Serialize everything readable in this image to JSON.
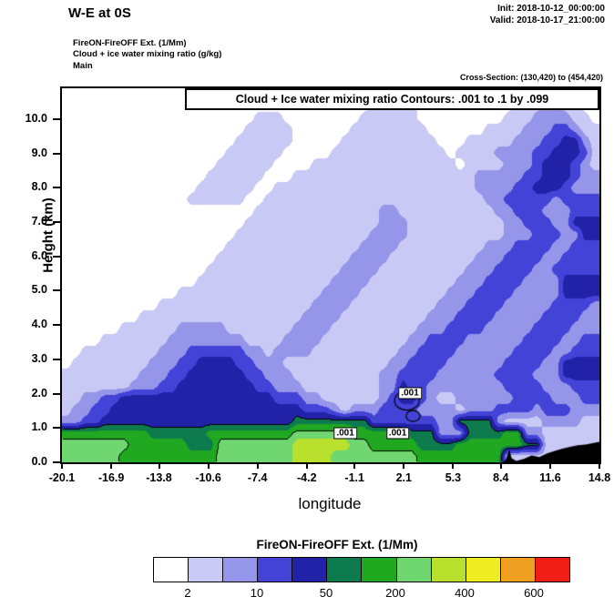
{
  "header": {
    "title": "W-E at 0S",
    "init": "Init: 2018-10-12_00:00:00",
    "valid": "Valid: 2018-10-17_21:00:00",
    "meta_line1": "FireON-FireOFF Ext.  (1/Mm)",
    "meta_line2": "Cloud + ice water mixing ratio  (g/kg)",
    "meta_line3": "Main",
    "cross_section": "Cross-Section: (130,420) to (454,420)"
  },
  "chart_data": {
    "type": "heatmap",
    "title_box": "Cloud + Ice water mixing ratio Contours: .001 to .1 by .099",
    "xlabel": "longitude",
    "ylabel": "Height (km)",
    "xlim": [
      -20.1,
      14.8
    ],
    "ylim": [
      0,
      10.9
    ],
    "x_ticks": [
      "-20.1",
      "-16.9",
      "-13.8",
      "-10.6",
      "-7.4",
      "-4.2",
      "-1.1",
      "2.1",
      "5.3",
      "8.4",
      "11.6",
      "14.8"
    ],
    "y_ticks": [
      "0.0",
      "1.0",
      "2.0",
      "3.0",
      "4.0",
      "5.0",
      "6.0",
      "7.0",
      "8.0",
      "9.0",
      "10.0"
    ],
    "palette": [
      "#ffffff",
      "#c9c9f5",
      "#9595e9",
      "#4343d8",
      "#2222a8",
      "#0e7b4f",
      "#21a821",
      "#70d670",
      "#b8e02c",
      "#f0ee22",
      "#f0a122",
      "#f01e14"
    ],
    "grid": {
      "nx": 56,
      "ny": 32,
      "note": "filled contour level index field, row 0 = top of plot; segments [startCol,endCol,levelIndex]",
      "rows": [
        [
          [
            33,
            35,
            1
          ],
          [
            49,
            52,
            1
          ]
        ],
        [
          [
            32,
            36,
            1
          ],
          [
            47,
            53,
            1
          ],
          [
            50,
            51,
            2
          ]
        ],
        [
          [
            20,
            22,
            1
          ],
          [
            31,
            36,
            1
          ],
          [
            46,
            54,
            1
          ],
          [
            49,
            52,
            2
          ]
        ],
        [
          [
            19,
            23,
            1
          ],
          [
            30,
            37,
            1
          ],
          [
            44,
            55,
            1
          ],
          [
            48,
            53,
            2
          ],
          [
            51,
            52,
            3
          ]
        ],
        [
          [
            18,
            23,
            1
          ],
          [
            29,
            38,
            1
          ],
          [
            42,
            55,
            1
          ],
          [
            47,
            54,
            2
          ],
          [
            50,
            53,
            3
          ],
          [
            52,
            53,
            4
          ]
        ],
        [
          [
            17,
            22,
            1
          ],
          [
            28,
            39,
            1
          ],
          [
            41,
            55,
            1
          ],
          [
            45,
            54,
            2
          ],
          [
            49,
            54,
            3
          ],
          [
            51,
            53,
            4
          ]
        ],
        [
          [
            16,
            21,
            1
          ],
          [
            26,
            40,
            1
          ],
          [
            42,
            55,
            1
          ],
          [
            46,
            54,
            2
          ],
          [
            49,
            53,
            3
          ],
          [
            50,
            52,
            4
          ]
        ],
        [
          [
            15,
            20,
            1
          ],
          [
            24,
            42,
            1
          ],
          [
            43,
            55,
            2
          ],
          [
            48,
            53,
            3
          ],
          [
            50,
            52,
            4
          ]
        ],
        [
          [
            14,
            19,
            1
          ],
          [
            22,
            42,
            1
          ],
          [
            43,
            55,
            2
          ],
          [
            47,
            52,
            3
          ],
          [
            49,
            51,
            4
          ]
        ],
        [
          [
            13,
            18,
            1
          ],
          [
            21,
            43,
            1
          ],
          [
            44,
            55,
            2
          ],
          [
            46,
            50,
            3
          ],
          [
            52,
            55,
            3
          ]
        ],
        [
          [
            20,
            44,
            1
          ],
          [
            33,
            34,
            2
          ],
          [
            45,
            55,
            2
          ],
          [
            47,
            49,
            3
          ],
          [
            53,
            55,
            3
          ]
        ],
        [
          [
            19,
            45,
            1
          ],
          [
            33,
            35,
            2
          ],
          [
            46,
            55,
            2
          ],
          [
            48,
            50,
            3
          ],
          [
            53,
            55,
            4
          ]
        ],
        [
          [
            18,
            45,
            1
          ],
          [
            32,
            35,
            2
          ],
          [
            46,
            55,
            2
          ],
          [
            49,
            51,
            3
          ],
          [
            54,
            55,
            4
          ]
        ],
        [
          [
            17,
            45,
            1
          ],
          [
            31,
            34,
            2
          ],
          [
            44,
            55,
            2
          ],
          [
            47,
            50,
            3
          ],
          [
            53,
            55,
            3
          ]
        ],
        [
          [
            16,
            45,
            1
          ],
          [
            30,
            33,
            2
          ],
          [
            43,
            55,
            2
          ],
          [
            46,
            49,
            3
          ],
          [
            52,
            55,
            3
          ]
        ],
        [
          [
            15,
            44,
            1
          ],
          [
            29,
            32,
            2
          ],
          [
            42,
            55,
            2
          ],
          [
            45,
            48,
            3
          ],
          [
            51,
            55,
            3
          ]
        ],
        [
          [
            14,
            44,
            1
          ],
          [
            28,
            31,
            2
          ],
          [
            41,
            55,
            2
          ],
          [
            44,
            47,
            3
          ],
          [
            52,
            55,
            4
          ]
        ],
        [
          [
            12,
            43,
            1
          ],
          [
            27,
            30,
            2
          ],
          [
            40,
            55,
            2
          ],
          [
            43,
            46,
            3
          ],
          [
            52,
            55,
            4
          ]
        ],
        [
          [
            10,
            43,
            1
          ],
          [
            26,
            29,
            2
          ],
          [
            39,
            55,
            2
          ],
          [
            42,
            45,
            3
          ],
          [
            51,
            54,
            3
          ]
        ],
        [
          [
            8,
            42,
            1
          ],
          [
            25,
            28,
            2
          ],
          [
            38,
            55,
            2
          ],
          [
            41,
            44,
            3
          ],
          [
            50,
            53,
            3
          ]
        ],
        [
          [
            6,
            42,
            1
          ],
          [
            12,
            16,
            2
          ],
          [
            24,
            27,
            2
          ],
          [
            37,
            55,
            2
          ],
          [
            40,
            43,
            3
          ],
          [
            49,
            52,
            3
          ]
        ],
        [
          [
            4,
            43,
            1
          ],
          [
            11,
            18,
            2
          ],
          [
            23,
            26,
            2
          ],
          [
            36,
            55,
            2
          ],
          [
            38,
            41,
            3
          ],
          [
            48,
            51,
            3
          ],
          [
            54,
            55,
            3
          ]
        ],
        [
          [
            2,
            43,
            1
          ],
          [
            10,
            20,
            2
          ],
          [
            13,
            18,
            3
          ],
          [
            22,
            25,
            2
          ],
          [
            35,
            55,
            2
          ],
          [
            37,
            40,
            3
          ],
          [
            47,
            50,
            3
          ],
          [
            53,
            55,
            3
          ]
        ],
        [
          [
            1,
            44,
            1
          ],
          [
            9,
            22,
            2
          ],
          [
            12,
            19,
            3
          ],
          [
            14,
            17,
            4
          ],
          [
            34,
            55,
            2
          ],
          [
            36,
            39,
            3
          ],
          [
            46,
            49,
            3
          ],
          [
            52,
            55,
            4
          ]
        ],
        [
          [
            0,
            45,
            1
          ],
          [
            8,
            23,
            2
          ],
          [
            11,
            20,
            3
          ],
          [
            13,
            18,
            4
          ],
          [
            33,
            55,
            2
          ],
          [
            35,
            38,
            3
          ],
          [
            45,
            48,
            3
          ],
          [
            52,
            55,
            4
          ]
        ],
        [
          [
            0,
            55,
            1
          ],
          [
            7,
            24,
            2
          ],
          [
            10,
            21,
            3
          ],
          [
            12,
            19,
            4
          ],
          [
            33,
            55,
            2
          ],
          [
            35,
            37,
            3
          ],
          [
            35,
            35,
            4
          ],
          [
            46,
            49,
            3
          ],
          [
            53,
            55,
            3
          ]
        ],
        [
          [
            0,
            55,
            1
          ],
          [
            2,
            26,
            2
          ],
          [
            4,
            24,
            3
          ],
          [
            6,
            21,
            4
          ],
          [
            33,
            38,
            2
          ],
          [
            34,
            37,
            3
          ],
          [
            35,
            36,
            4
          ],
          [
            41,
            55,
            2
          ],
          [
            47,
            50,
            3
          ],
          [
            54,
            55,
            3
          ]
        ],
        [
          [
            0,
            55,
            1
          ],
          [
            1,
            28,
            2
          ],
          [
            3,
            27,
            3
          ],
          [
            5,
            24,
            4
          ],
          [
            30,
            40,
            2
          ],
          [
            33,
            36,
            3
          ],
          [
            42,
            55,
            2
          ],
          [
            45,
            48,
            3
          ],
          [
            50,
            52,
            3
          ]
        ],
        [
          [
            0,
            55,
            1
          ],
          [
            0,
            31,
            2
          ],
          [
            2,
            30,
            3
          ],
          [
            4,
            23,
            4
          ],
          [
            24,
            31,
            5
          ],
          [
            32,
            38,
            3
          ],
          [
            39,
            45,
            2
          ],
          [
            41,
            44,
            5
          ],
          [
            50,
            53,
            2
          ]
        ],
        [
          [
            0,
            55,
            1
          ],
          [
            0,
            8,
            6
          ],
          [
            9,
            14,
            5
          ],
          [
            15,
            30,
            6
          ],
          [
            24,
            29,
            7
          ],
          [
            31,
            35,
            6
          ],
          [
            36,
            38,
            5
          ],
          [
            39,
            41,
            2
          ],
          [
            42,
            45,
            5
          ],
          [
            46,
            47,
            6
          ],
          [
            48,
            49,
            2
          ]
        ],
        [
          [
            0,
            55,
            1
          ],
          [
            0,
            6,
            7
          ],
          [
            7,
            12,
            6
          ],
          [
            13,
            15,
            5
          ],
          [
            16,
            23,
            7
          ],
          [
            24,
            29,
            8
          ],
          [
            30,
            31,
            7
          ],
          [
            32,
            36,
            6
          ],
          [
            37,
            40,
            5
          ],
          [
            41,
            45,
            6
          ],
          [
            46,
            47,
            6
          ],
          [
            48,
            49,
            5
          ]
        ],
        [
          [
            0,
            55,
            1
          ],
          [
            0,
            5,
            7
          ],
          [
            6,
            15,
            6
          ],
          [
            16,
            29,
            7
          ],
          [
            24,
            27,
            8
          ],
          [
            30,
            36,
            7
          ],
          [
            37,
            45,
            6
          ]
        ]
      ]
    },
    "terrain_profile": [
      [
        8.55,
        0.0
      ],
      [
        8.75,
        0.1
      ],
      [
        8.95,
        0.38
      ],
      [
        9.1,
        0.12
      ],
      [
        9.4,
        0.04
      ],
      [
        9.9,
        0.1
      ],
      [
        10.4,
        0.2
      ],
      [
        10.9,
        0.15
      ],
      [
        11.4,
        0.26
      ],
      [
        11.9,
        0.33
      ],
      [
        12.4,
        0.4
      ],
      [
        12.9,
        0.45
      ],
      [
        13.4,
        0.5
      ],
      [
        13.9,
        0.52
      ],
      [
        14.35,
        0.56
      ],
      [
        14.8,
        0.6
      ]
    ],
    "contour_labels": [
      {
        "text": ".001",
        "lon": 2.5,
        "h": 2.02
      },
      {
        "text": ".001",
        "lon": -1.7,
        "h": 0.85
      },
      {
        "text": ".001",
        "lon": 1.7,
        "h": 0.85
      }
    ],
    "contour_rings": [
      {
        "lon": 2.3,
        "h": 1.8,
        "rx": 0.8,
        "ry": 0.28
      },
      {
        "lon": 2.7,
        "h": 1.35,
        "rx": 0.45,
        "ry": 0.16
      }
    ]
  },
  "colorbar": {
    "title": "FireON-FireOFF Ext.  (1/Mm)",
    "labels": [
      "2",
      "10",
      "50",
      "200",
      "400",
      "600"
    ],
    "label_boundaries": [
      1,
      3,
      5,
      7,
      9,
      11
    ]
  }
}
